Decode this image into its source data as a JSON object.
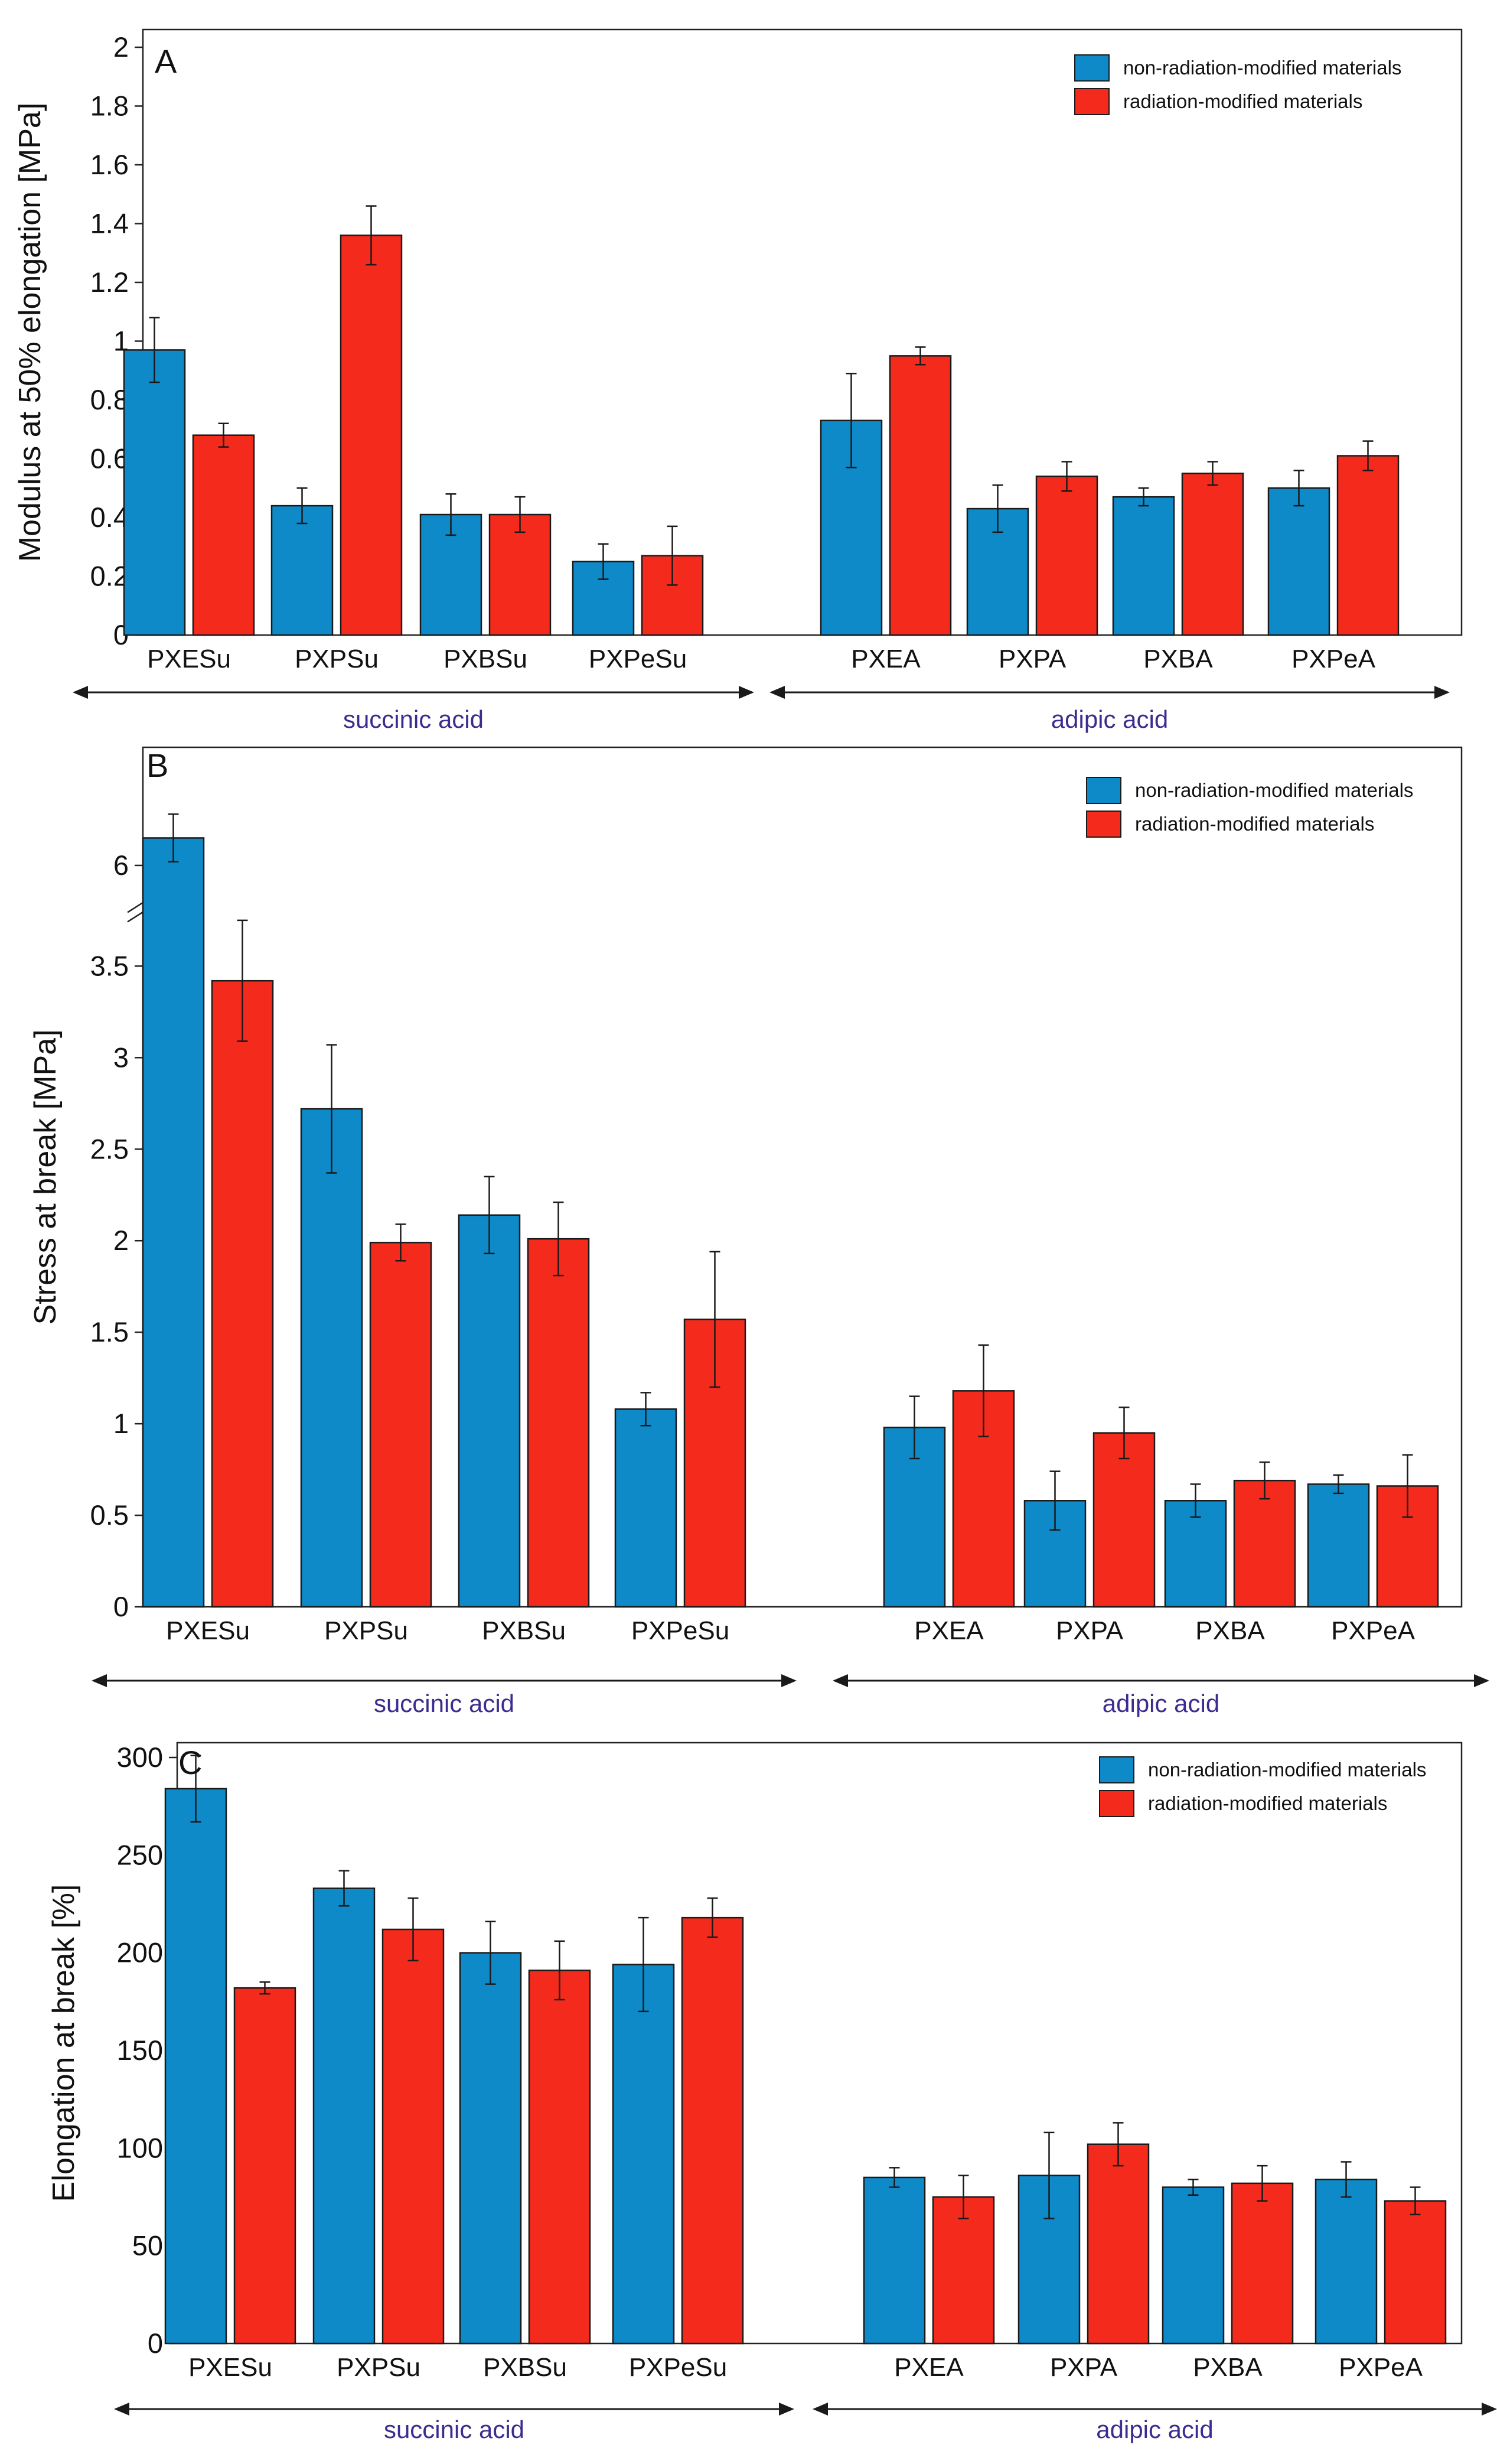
{
  "colors": {
    "non_radiation": "#0e8ac8",
    "radiation": "#f42a1c",
    "group_label": "#3b2d8f",
    "axis": "#222222"
  },
  "chart_data": [
    {
      "panel": "A",
      "type": "bar",
      "ylabel": "Modulus at 50% elongation [MPa]",
      "ylim": [
        0,
        2
      ],
      "yticks": [
        0,
        0.2,
        0.4,
        0.6,
        0.8,
        1,
        1.2,
        1.4,
        1.6,
        1.8,
        2
      ],
      "ytick_labels": [
        "0",
        "0.2",
        "0.4",
        "0.6",
        "0.8",
        "1",
        "1.2",
        "1.4",
        "1.6",
        "1.8",
        "2"
      ],
      "categories": [
        "PXESu",
        "PXPSu",
        "PXBSu",
        "PXPeSu",
        "PXEA",
        "PXPA",
        "PXBA",
        "PXPeA"
      ],
      "groups": [
        {
          "label": "succinic acid",
          "categories": [
            "PXESu",
            "PXPSu",
            "PXBSu",
            "PXPeSu"
          ]
        },
        {
          "label": "adipic acid",
          "categories": [
            "PXEA",
            "PXPA",
            "PXBA",
            "PXPeA"
          ]
        }
      ],
      "legend": [
        "non-radiation-modified materials",
        "radiation-modified materials"
      ],
      "legend_position": "top-right",
      "series": [
        {
          "name": "non-radiation-modified materials",
          "values": [
            0.97,
            0.44,
            0.41,
            0.25,
            0.73,
            0.43,
            0.47,
            0.5
          ],
          "errors": [
            0.11,
            0.06,
            0.07,
            0.06,
            0.16,
            0.08,
            0.03,
            0.06
          ]
        },
        {
          "name": "radiation-modified materials",
          "values": [
            0.68,
            1.36,
            0.41,
            0.27,
            0.95,
            0.54,
            0.55,
            0.61
          ],
          "errors": [
            0.04,
            0.1,
            0.06,
            0.1,
            0.03,
            0.05,
            0.04,
            0.05
          ]
        }
      ]
    },
    {
      "panel": "B",
      "type": "bar",
      "ylabel": "Stress at break [MPa]",
      "ylim": [
        0,
        6.5
      ],
      "axis_break": {
        "from": 3.8,
        "to": 5.75
      },
      "yticks": [
        0,
        0.5,
        1,
        1.5,
        2,
        2.5,
        3,
        3.5,
        6
      ],
      "ytick_labels": [
        "0",
        "0.5",
        "1",
        "1.5",
        "2",
        "2.5",
        "3",
        "3.5",
        "6"
      ],
      "categories": [
        "PXESu",
        "PXPSu",
        "PXBSu",
        "PXPeSu",
        "PXEA",
        "PXPA",
        "PXBA",
        "PXPeA"
      ],
      "groups": [
        {
          "label": "succinic acid",
          "categories": [
            "PXESu",
            "PXPSu",
            "PXBSu",
            "PXPeSu"
          ]
        },
        {
          "label": "adipic acid",
          "categories": [
            "PXEA",
            "PXPA",
            "PXBA",
            "PXPeA"
          ]
        }
      ],
      "legend": [
        "non-radiation-modified materials",
        "radiation-modified materials"
      ],
      "legend_position": "top-right",
      "series": [
        {
          "name": "non-radiation-modified materials",
          "values": [
            6.15,
            2.72,
            2.14,
            1.08,
            0.98,
            0.58,
            0.58,
            0.67
          ],
          "errors": [
            0.13,
            0.35,
            0.21,
            0.09,
            0.17,
            0.16,
            0.09,
            0.05
          ]
        },
        {
          "name": "radiation-modified materials",
          "values": [
            3.42,
            1.99,
            2.01,
            1.57,
            1.18,
            0.95,
            0.69,
            0.66
          ],
          "errors": [
            0.33,
            0.1,
            0.2,
            0.37,
            0.25,
            0.14,
            0.1,
            0.17
          ]
        }
      ]
    },
    {
      "panel": "C",
      "type": "bar",
      "ylabel": "Elongation at break [%]",
      "ylim": [
        0,
        300
      ],
      "yticks": [
        0,
        50,
        100,
        150,
        200,
        250,
        300
      ],
      "ytick_labels": [
        "0",
        "50",
        "100",
        "150",
        "200",
        "250",
        "300"
      ],
      "categories": [
        "PXESu",
        "PXPSu",
        "PXBSu",
        "PXPeSu",
        "PXEA",
        "PXPA",
        "PXBA",
        "PXPeA"
      ],
      "groups": [
        {
          "label": "succinic acid",
          "categories": [
            "PXESu",
            "PXPSu",
            "PXBSu",
            "PXPeSu"
          ]
        },
        {
          "label": "adipic acid",
          "categories": [
            "PXEA",
            "PXPA",
            "PXBA",
            "PXPeA"
          ]
        }
      ],
      "legend": [
        "non-radiation-modified materials",
        "radiation-modified materials"
      ],
      "legend_position": "top-right",
      "series": [
        {
          "name": "non-radiation-modified materials",
          "values": [
            284,
            233,
            200,
            194,
            85,
            86,
            80,
            84
          ],
          "errors": [
            17,
            9,
            16,
            24,
            5,
            22,
            4,
            9
          ]
        },
        {
          "name": "radiation-modified materials",
          "values": [
            182,
            212,
            191,
            218,
            75,
            102,
            82,
            73
          ],
          "errors": [
            3,
            16,
            15,
            10,
            11,
            11,
            9,
            7
          ]
        }
      ]
    }
  ]
}
